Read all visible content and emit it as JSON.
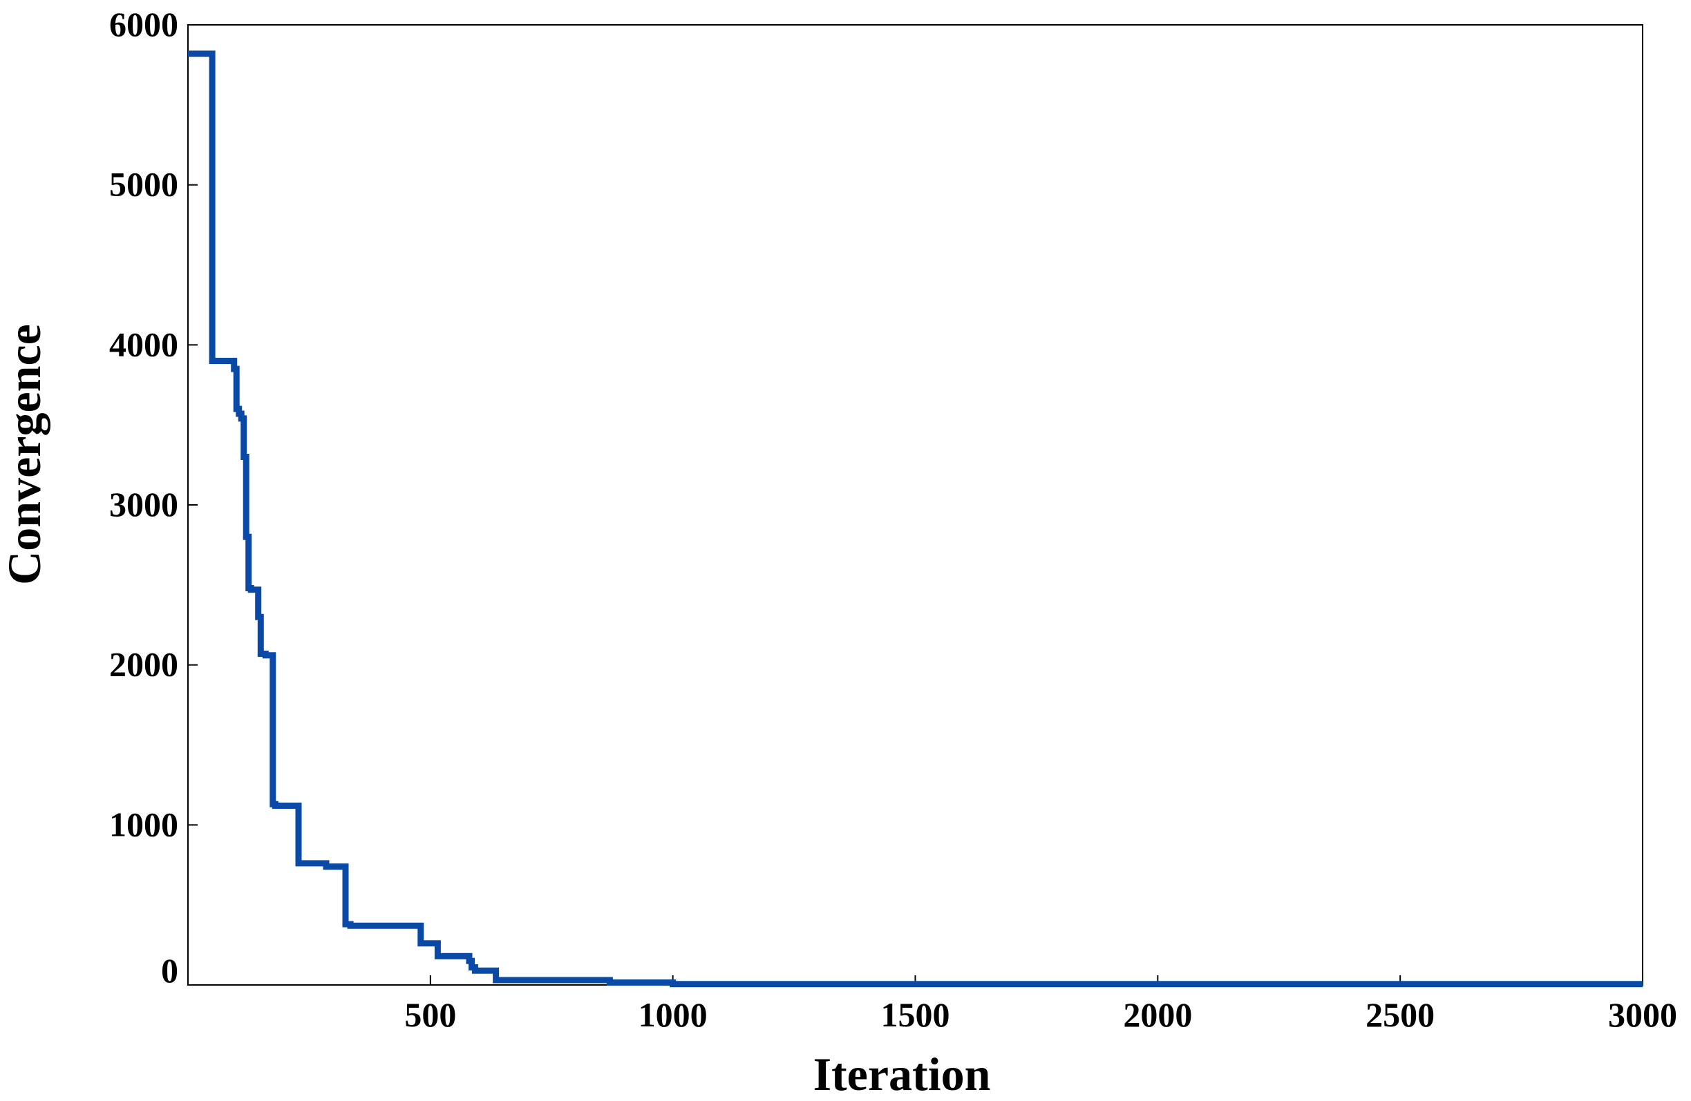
{
  "chart_data": {
    "type": "line",
    "step": true,
    "title": "",
    "xlabel": "Iteration",
    "ylabel": "Convergence",
    "xlim": [
      0,
      3000
    ],
    "ylim": [
      0,
      6000
    ],
    "xticks": [
      500,
      1000,
      1500,
      2000,
      2500,
      3000
    ],
    "yticks": [
      0,
      1000,
      2000,
      3000,
      4000,
      5000,
      6000
    ],
    "grid": false,
    "legend": "none",
    "line_color": "#0a4aa6",
    "series": [
      {
        "x": [
          0,
          50,
          50,
          95,
          95,
          100,
          100,
          105,
          105,
          110,
          110,
          115,
          115,
          120,
          120,
          125,
          125,
          130,
          130,
          145,
          145,
          150,
          150,
          160,
          160,
          175,
          175,
          180,
          180,
          228,
          228,
          285,
          285,
          325,
          325,
          335,
          335,
          355,
          355,
          480,
          480,
          515,
          515,
          580,
          580,
          585,
          585,
          592,
          592,
          635,
          635,
          645,
          645,
          870,
          870,
          1000,
          1000,
          3000
        ],
        "y": [
          5820,
          5820,
          3900,
          3900,
          3850,
          3850,
          3600,
          3600,
          3570,
          3570,
          3540,
          3540,
          3300,
          3300,
          2800,
          2800,
          2480,
          2480,
          2470,
          2470,
          2300,
          2300,
          2070,
          2070,
          2060,
          2060,
          1130,
          1130,
          1120,
          1120,
          760,
          760,
          740,
          740,
          380,
          380,
          370,
          370,
          370,
          370,
          260,
          260,
          180,
          180,
          150,
          150,
          110,
          110,
          90,
          90,
          30,
          30,
          30,
          30,
          15,
          15,
          5,
          5
        ]
      }
    ]
  }
}
